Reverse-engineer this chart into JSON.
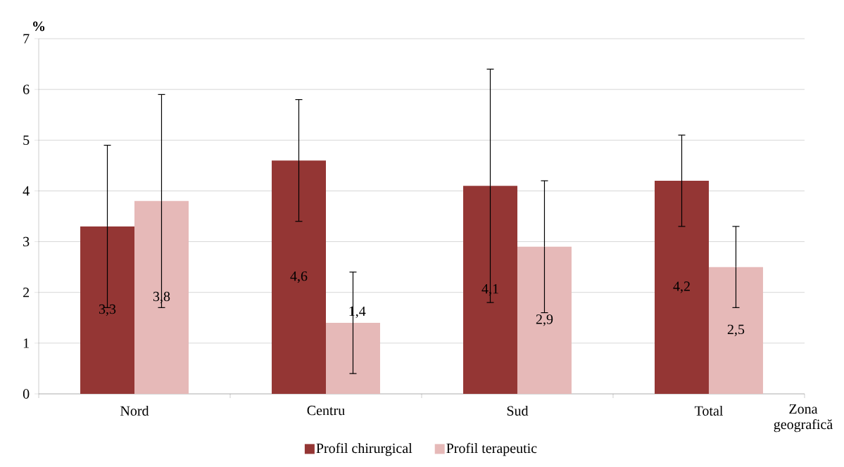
{
  "chart_data": {
    "type": "bar",
    "ylabel": "%",
    "xlabel": "Zona geografică",
    "categories": [
      "Nord",
      "Centru",
      "Sud",
      "Total"
    ],
    "series": [
      {
        "name": "Profil chirurgical",
        "color": "#943634",
        "values": [
          3.3,
          4.6,
          4.1,
          4.2
        ],
        "errors": [
          1.6,
          1.2,
          2.3,
          0.9
        ],
        "value_labels": [
          "3,3",
          "4,6",
          "4,1",
          "4,2"
        ]
      },
      {
        "name": "Profil terapeutic",
        "color": "#e6b9b8",
        "values": [
          3.8,
          1.4,
          2.9,
          2.5
        ],
        "errors": [
          2.1,
          1.0,
          1.3,
          0.8
        ],
        "value_labels": [
          "3,8",
          "1,4",
          "2,9",
          "2,5"
        ]
      }
    ],
    "ylim": [
      0,
      7
    ],
    "yticks": [
      0,
      1,
      2,
      3,
      4,
      5,
      6,
      7
    ],
    "grid": "y",
    "legend": "bottom"
  }
}
